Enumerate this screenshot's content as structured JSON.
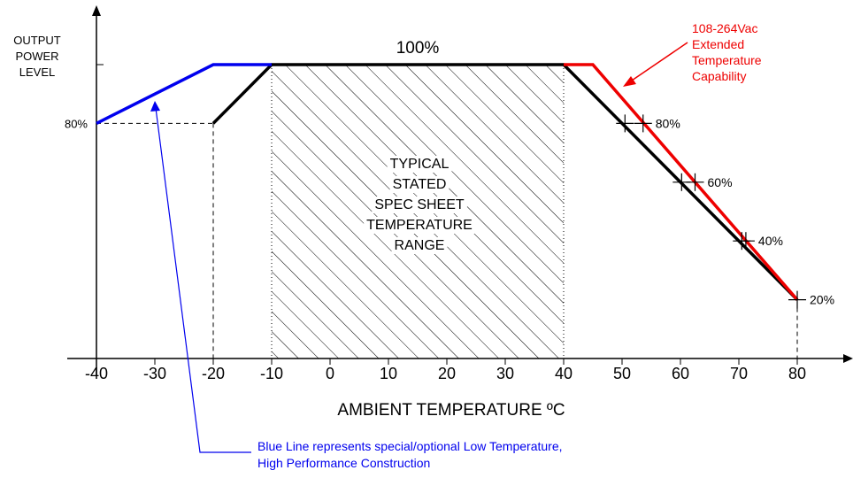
{
  "chart_data": {
    "type": "line",
    "title": "",
    "xlabel": "AMBIENT TEMPERATURE ºC",
    "ylabel_lines": [
      "OUTPUT",
      "POWER",
      "LEVEL"
    ],
    "x_ticks": [
      -40,
      -30,
      -20,
      -10,
      0,
      10,
      20,
      30,
      40,
      50,
      60,
      70,
      80
    ],
    "x_tick_labels": [
      "-40",
      "-30",
      "-20",
      "-10",
      "0",
      "10",
      "20",
      "30",
      "40",
      "50",
      "60",
      "70",
      "80"
    ],
    "xlim": [
      -40,
      80
    ],
    "ylim": [
      0,
      100
    ],
    "y_tick_labels": [
      {
        "y": 80,
        "label": "80%"
      }
    ],
    "top_label": "100%",
    "series": [
      {
        "color": "#000000",
        "points": [
          [
            -20,
            80
          ],
          [
            -10,
            100
          ],
          [
            40,
            100
          ],
          [
            80,
            20
          ]
        ]
      },
      {
        "color": "#0000ee",
        "points": [
          [
            -40,
            80
          ],
          [
            -20,
            100
          ],
          [
            -10,
            100
          ]
        ]
      },
      {
        "color": "#ee0000",
        "points": [
          [
            40,
            100
          ],
          [
            45,
            100
          ],
          [
            80,
            20
          ]
        ]
      }
    ],
    "markers": [
      {
        "label": "80%",
        "y": 80,
        "x_black": 50.5,
        "x_red": 53.6
      },
      {
        "label": "60%",
        "y": 60,
        "x_black": 60.2,
        "x_red": 62.5
      },
      {
        "label": "40%",
        "y": 40,
        "x_black": 70.5,
        "x_red": 71.2
      },
      {
        "label": "20%",
        "y": 20,
        "x_black": 80,
        "x_red": 80
      }
    ],
    "shaded_region": {
      "x_range": [
        -10,
        40
      ],
      "label_lines": [
        "TYPICAL",
        "STATED",
        "SPEC SHEET",
        "TEMPERATURE",
        "RANGE"
      ]
    },
    "annotations": [
      {
        "color": "#ee0000",
        "lines": [
          "108-264Vac",
          "Extended",
          "Temperature",
          "Capability"
        ]
      },
      {
        "color": "#0000ee",
        "lines": [
          "Blue Line represents special/optional Low Temperature,",
          "High Performance Construction"
        ]
      }
    ]
  }
}
